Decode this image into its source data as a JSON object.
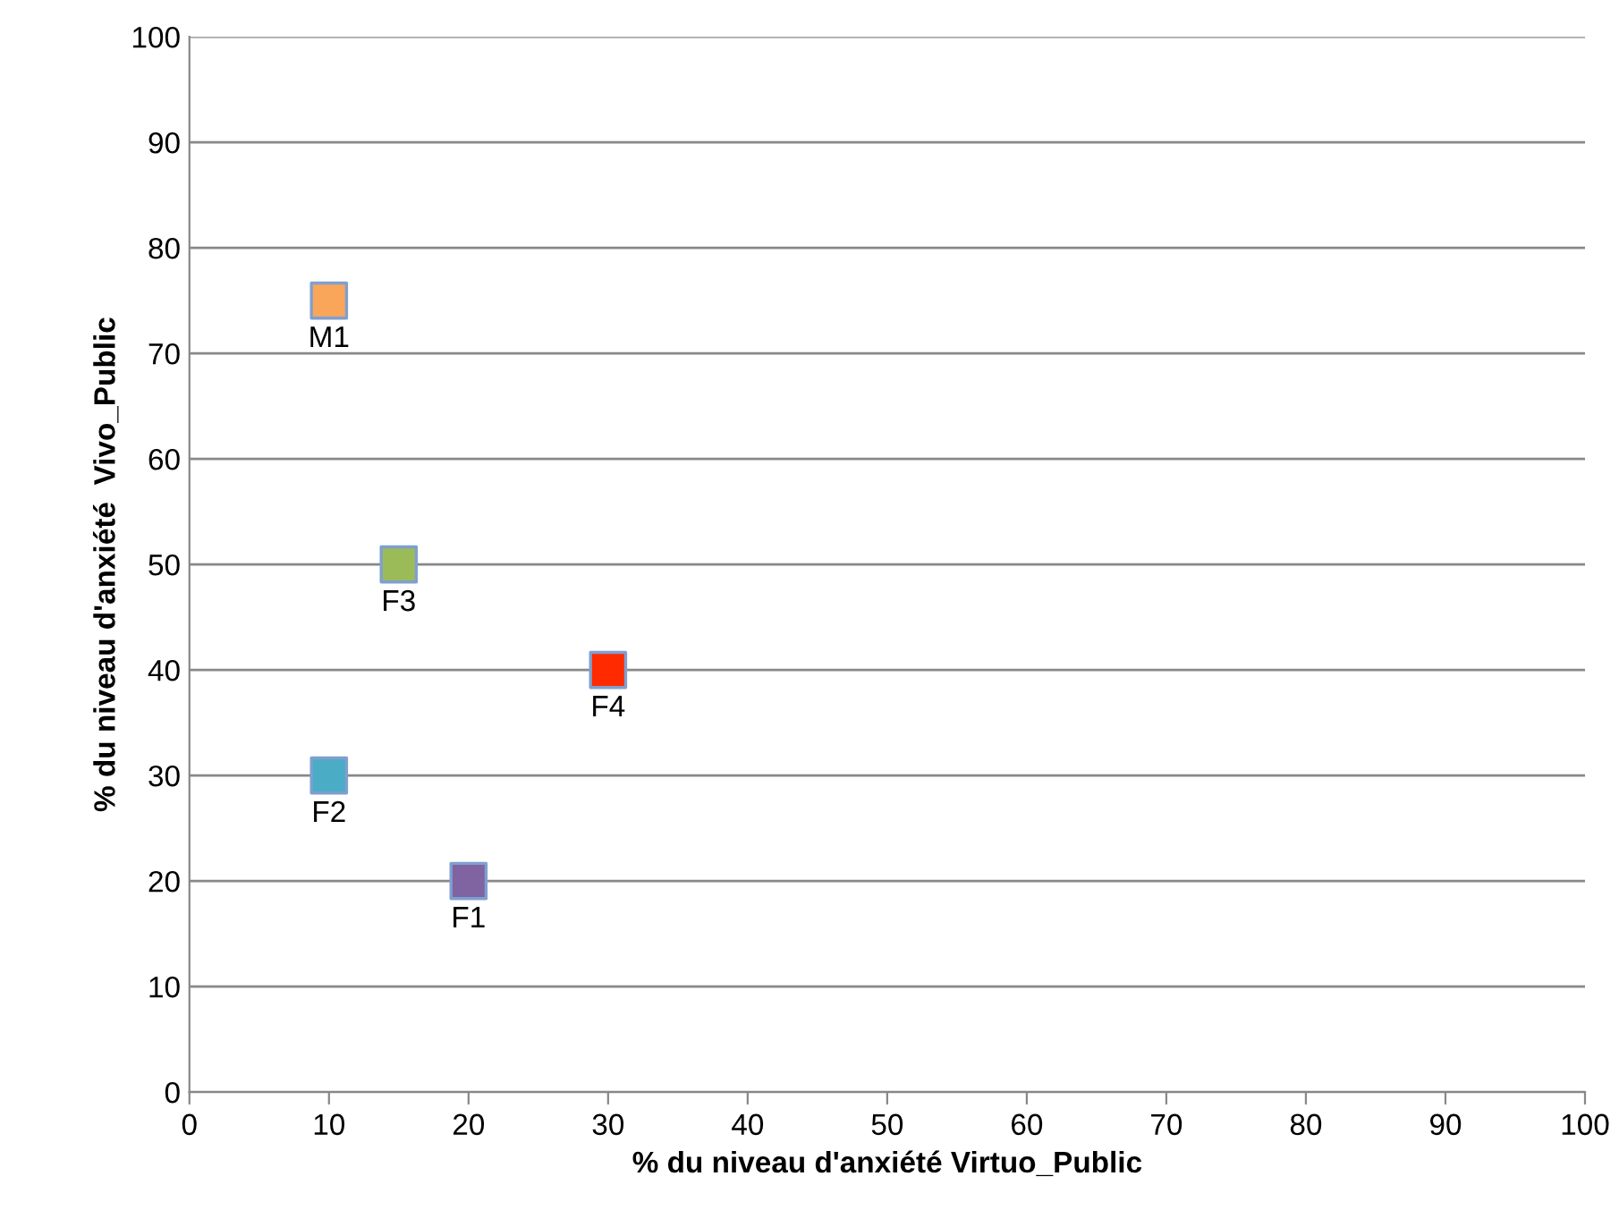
{
  "chart_data": {
    "type": "scatter",
    "xlabel": "% du niveau d'anxiété Virtuo_Public",
    "ylabel": "% du niveau d'anxiété  Vivo_Public",
    "xlim": [
      0,
      100
    ],
    "ylim": [
      0,
      100
    ],
    "xticks": [
      0,
      10,
      20,
      30,
      40,
      50,
      60,
      70,
      80,
      90,
      100
    ],
    "yticks": [
      0,
      10,
      20,
      30,
      40,
      50,
      60,
      70,
      80,
      90,
      100
    ],
    "grid": "y",
    "legend": false,
    "marker": "square",
    "series": [
      {
        "name": "M1",
        "color": "#f9a65a",
        "x": [
          10
        ],
        "values": [
          75
        ]
      },
      {
        "name": "F3",
        "color": "#9bbb59",
        "x": [
          15
        ],
        "values": [
          50
        ]
      },
      {
        "name": "F4",
        "color": "#ff2a00",
        "x": [
          30
        ],
        "values": [
          40
        ]
      },
      {
        "name": "F2",
        "color": "#4bacc6",
        "x": [
          10
        ],
        "values": [
          30
        ]
      },
      {
        "name": "F1",
        "color": "#8064a2",
        "x": [
          20
        ],
        "values": [
          20
        ]
      }
    ]
  }
}
